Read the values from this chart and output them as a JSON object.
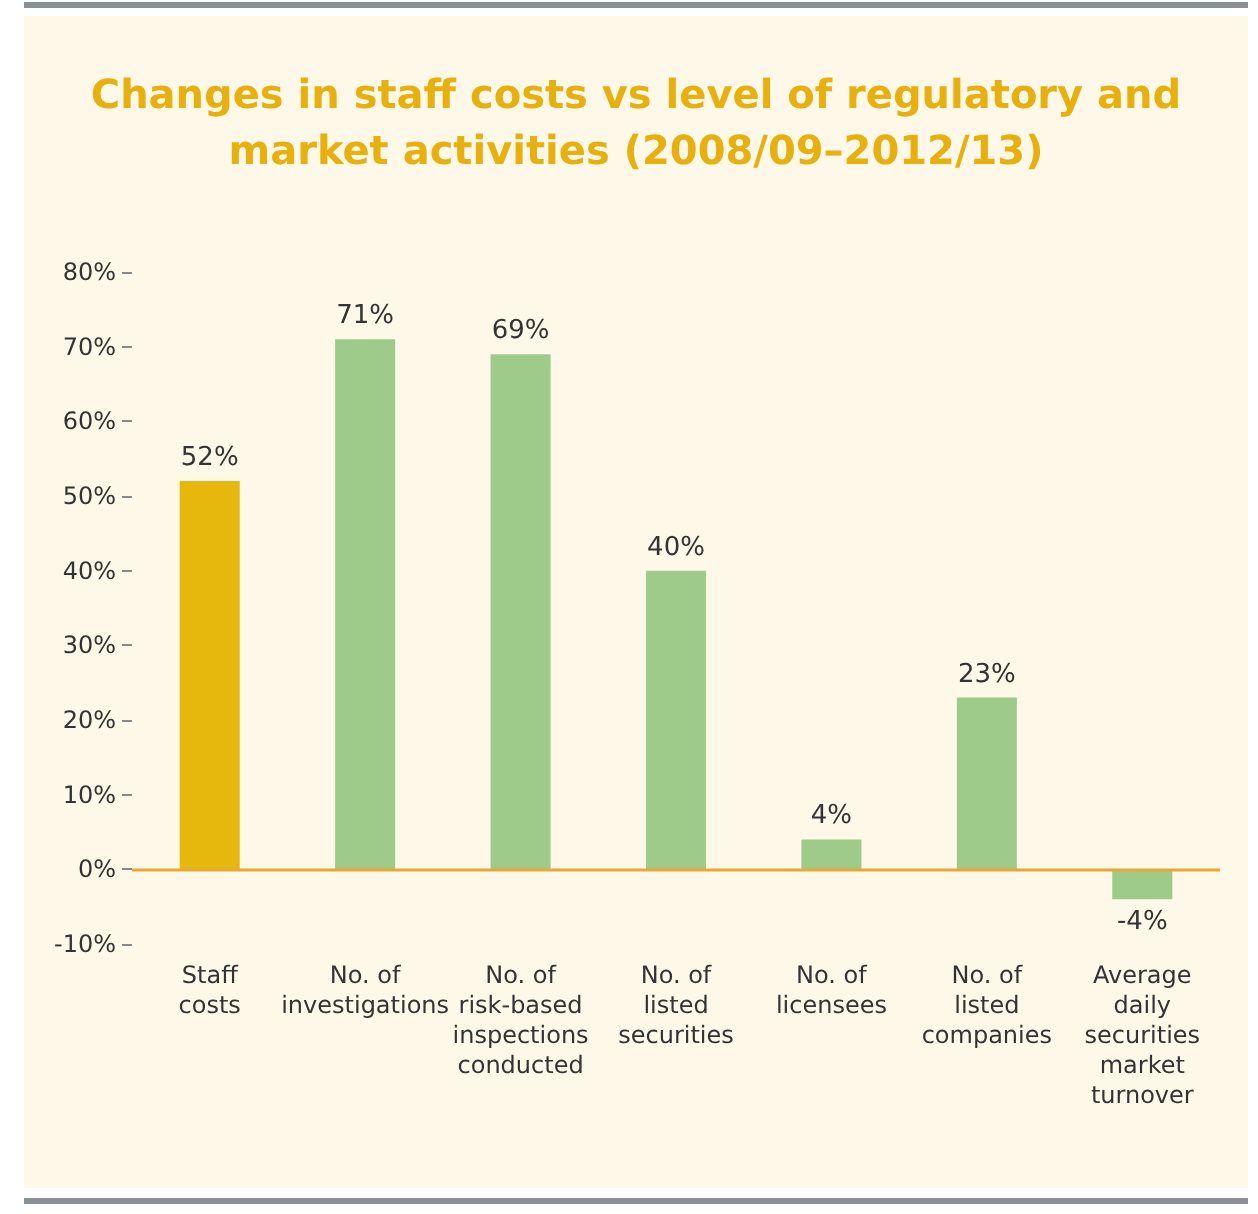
{
  "chart_data": {
    "type": "bar",
    "title": "Changes in staff costs vs level of regulatory and\nmarket activities (2008/09–2012/13)",
    "categories": [
      "Staff\ncosts",
      "No. of\ninvestigations",
      "No. of\nrisk-based\ninspections\nconducted",
      "No. of\nlisted\nsecurities",
      "No. of\nlicensees",
      "No. of\nlisted\ncompanies",
      "Average\ndaily\nsecurities\nmarket\nturnover"
    ],
    "values": [
      52,
      71,
      69,
      40,
      4,
      23,
      -4
    ],
    "colors": [
      "#e6b70d",
      "#9fcb8a",
      "#9fcb8a",
      "#9fcb8a",
      "#9fcb8a",
      "#9fcb8a",
      "#9fcb8a"
    ],
    "value_labels": [
      "52%",
      "71%",
      "69%",
      "40%",
      "4%",
      "23%",
      "-4%"
    ],
    "ylim": [
      -10,
      80
    ],
    "yticks": [
      {
        "value": -10,
        "label": "-10%"
      },
      {
        "value": 0,
        "label": "0%"
      },
      {
        "value": 10,
        "label": "10%"
      },
      {
        "value": 20,
        "label": "20%"
      },
      {
        "value": 30,
        "label": "30%"
      },
      {
        "value": 40,
        "label": "40%"
      },
      {
        "value": 50,
        "label": "50%"
      },
      {
        "value": 60,
        "label": "60%"
      },
      {
        "value": 70,
        "label": "70%"
      },
      {
        "value": 80,
        "label": "80%"
      }
    ],
    "ref_lines": [
      {
        "axis": "y",
        "value": 0,
        "color": "#e8a838"
      }
    ],
    "grid": false
  }
}
